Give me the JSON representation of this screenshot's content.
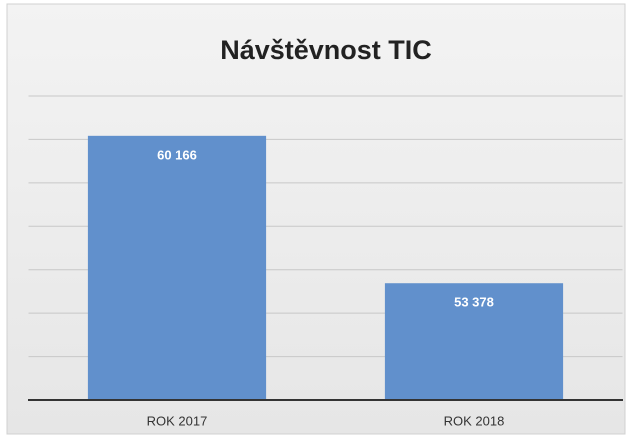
{
  "chart_data": {
    "type": "bar",
    "title": "Návštěvnost TIC",
    "categories": [
      "ROK 2017",
      "ROK 2018"
    ],
    "values": [
      60166,
      53378
    ],
    "value_labels": [
      "60 166",
      "53 378"
    ],
    "color": "#6190cc",
    "ylim": [
      48000,
      62000
    ],
    "yticks": [
      48000,
      50000,
      52000,
      54000,
      56000,
      58000,
      60000,
      62000
    ],
    "grid": true
  }
}
